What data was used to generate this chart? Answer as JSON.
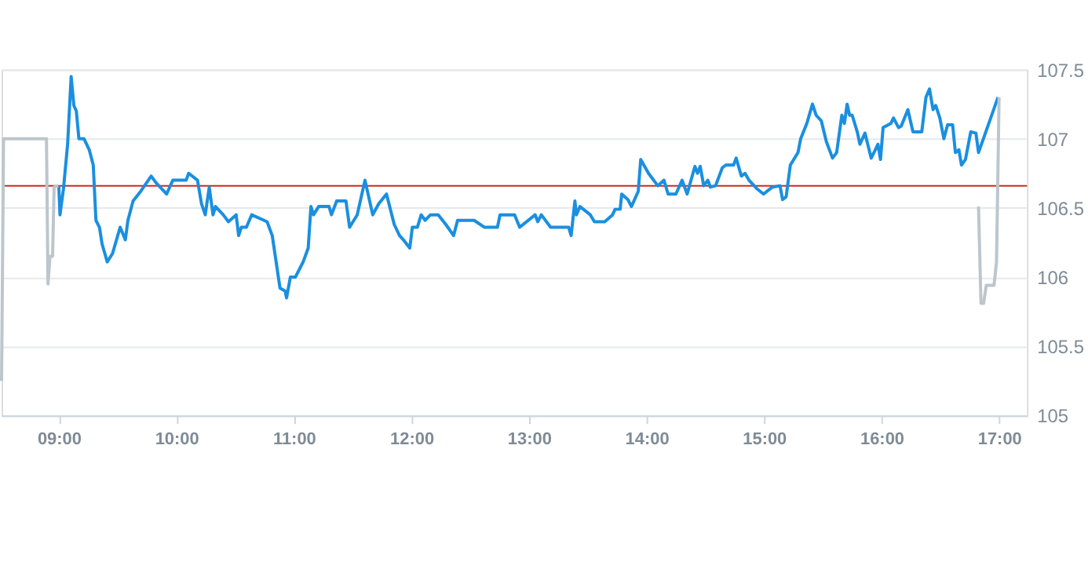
{
  "chart_data": {
    "type": "line",
    "x": [
      9.0,
      9.01,
      9.04,
      9.075,
      9.105,
      9.128,
      9.149,
      9.171,
      9.214,
      9.259,
      9.293,
      9.316,
      9.346,
      9.368,
      9.412,
      9.457,
      9.522,
      9.566,
      9.588,
      9.632,
      9.697,
      9.786,
      9.829,
      9.917,
      9.97,
      10.083,
      10.105,
      10.18,
      10.214,
      10.246,
      10.28,
      10.312,
      10.333,
      10.399,
      10.443,
      10.509,
      10.53,
      10.553,
      10.596,
      10.641,
      10.772,
      10.816,
      10.882,
      10.925,
      10.938,
      10.97,
      11.013,
      11.079,
      11.122,
      11.145,
      11.167,
      11.211,
      11.299,
      11.32,
      11.364,
      11.443,
      11.474,
      11.539,
      11.605,
      11.671,
      11.722,
      11.788,
      11.854,
      11.899,
      11.941,
      11.986,
      12.008,
      12.051,
      12.083,
      12.117,
      12.162,
      12.228,
      12.293,
      12.359,
      12.393,
      12.534,
      12.622,
      12.732,
      12.754,
      12.878,
      12.921,
      13.053,
      13.075,
      13.105,
      13.184,
      13.338,
      13.359,
      13.391,
      13.404,
      13.434,
      13.522,
      13.557,
      13.645,
      13.711,
      13.733,
      13.776,
      13.789,
      13.842,
      13.872,
      13.93,
      13.951,
      14.017,
      14.096,
      14.149,
      14.184,
      14.25,
      14.303,
      14.346,
      14.412,
      14.434,
      14.457,
      14.487,
      14.522,
      14.543,
      14.588,
      14.645,
      14.675,
      14.741,
      14.763,
      14.807,
      14.838,
      14.872,
      14.938,
      14.996,
      15.07,
      15.136,
      15.158,
      15.188,
      15.224,
      15.289,
      15.312,
      15.364,
      15.412,
      15.443,
      15.487,
      15.53,
      15.583,
      15.618,
      15.662,
      15.684,
      15.707,
      15.728,
      15.75,
      15.793,
      15.816,
      15.859,
      15.912,
      15.947,
      15.969,
      15.991,
      16.013,
      16.079,
      16.101,
      16.145,
      16.167,
      16.224,
      16.267,
      16.342,
      16.378,
      16.408,
      16.438,
      16.461,
      16.496,
      16.53,
      16.562,
      16.605,
      16.628,
      16.658,
      16.68,
      16.714,
      16.759,
      16.803,
      16.825,
      16.991
    ],
    "series": [
      {
        "color": "#1a8fe0",
        "values": [
          106.66,
          106.45,
          106.64,
          106.96,
          107.45,
          107.24,
          107.2,
          107.0,
          107.0,
          106.92,
          106.81,
          106.41,
          106.36,
          106.24,
          106.11,
          106.17,
          106.36,
          106.27,
          106.41,
          106.55,
          106.62,
          106.73,
          106.68,
          106.6,
          106.7,
          106.7,
          106.75,
          106.7,
          106.53,
          106.45,
          106.65,
          106.45,
          106.51,
          106.45,
          106.4,
          106.45,
          106.3,
          106.36,
          106.36,
          106.45,
          106.4,
          106.3,
          105.92,
          105.9,
          105.85,
          106.0,
          106.0,
          106.11,
          106.21,
          106.51,
          106.45,
          106.51,
          106.51,
          106.45,
          106.55,
          106.55,
          106.36,
          106.45,
          106.7,
          106.45,
          106.53,
          106.6,
          106.38,
          106.3,
          106.26,
          106.21,
          106.36,
          106.36,
          106.45,
          106.41,
          106.45,
          106.45,
          106.38,
          106.3,
          106.41,
          106.41,
          106.36,
          106.36,
          106.45,
          106.45,
          106.36,
          106.45,
          106.4,
          106.45,
          106.36,
          106.36,
          106.3,
          106.55,
          106.45,
          106.51,
          106.45,
          106.4,
          106.4,
          106.45,
          106.49,
          106.49,
          106.6,
          106.56,
          106.51,
          106.62,
          106.85,
          106.75,
          106.66,
          106.7,
          106.6,
          106.6,
          106.7,
          106.6,
          106.8,
          106.75,
          106.8,
          106.66,
          106.7,
          106.65,
          106.66,
          106.79,
          106.81,
          106.81,
          106.86,
          106.73,
          106.75,
          106.7,
          106.64,
          106.6,
          106.65,
          106.66,
          106.56,
          106.58,
          106.81,
          106.9,
          107.0,
          107.11,
          107.25,
          107.17,
          107.13,
          106.98,
          106.86,
          106.9,
          107.17,
          107.11,
          107.25,
          107.17,
          107.17,
          107.05,
          106.96,
          107.04,
          106.86,
          106.92,
          106.96,
          106.85,
          107.08,
          107.11,
          107.15,
          107.08,
          107.09,
          107.21,
          107.05,
          107.05,
          107.3,
          107.36,
          107.21,
          107.24,
          107.15,
          107.0,
          107.1,
          107.1,
          106.9,
          106.92,
          106.81,
          106.85,
          107.05,
          107.04,
          106.9,
          107.3
        ]
      },
      {
        "color": "#bcc6cc",
        "x": [
          8.513,
          8.53,
          8.895,
          8.908,
          8.925,
          8.947,
          8.96,
          8.996
        ],
        "values": [
          105.25,
          107.0,
          107.0,
          105.95,
          106.15,
          106.15,
          106.65,
          106.66
        ]
      },
      {
        "color": "#bcc6cc",
        "x": [
          16.825,
          16.846,
          16.868,
          16.891,
          16.957,
          16.978,
          17.0
        ],
        "values": [
          106.51,
          105.81,
          105.81,
          105.94,
          105.94,
          106.11,
          107.3
        ]
      }
    ],
    "xlim": [
      8.513,
      17.237
    ],
    "xticks": [
      {
        "value": 9,
        "label": "09:00"
      },
      {
        "value": 10,
        "label": "10:00"
      },
      {
        "value": 11,
        "label": "11:00"
      },
      {
        "value": 12,
        "label": "12:00"
      },
      {
        "value": 13,
        "label": "13:00"
      },
      {
        "value": 14,
        "label": "14:00"
      },
      {
        "value": 15,
        "label": "15:00"
      },
      {
        "value": 16,
        "label": "16:00"
      },
      {
        "value": 17,
        "label": "17:00"
      }
    ],
    "ylim": [
      105,
      107.5
    ],
    "yticks": [
      105,
      105.5,
      106,
      106.5,
      107,
      107.5
    ],
    "ref_lines": [
      {
        "axis": "y",
        "value": 106.66,
        "color": "#d0281e"
      }
    ],
    "grid": "y",
    "marker": "none",
    "line_style": "solid"
  }
}
